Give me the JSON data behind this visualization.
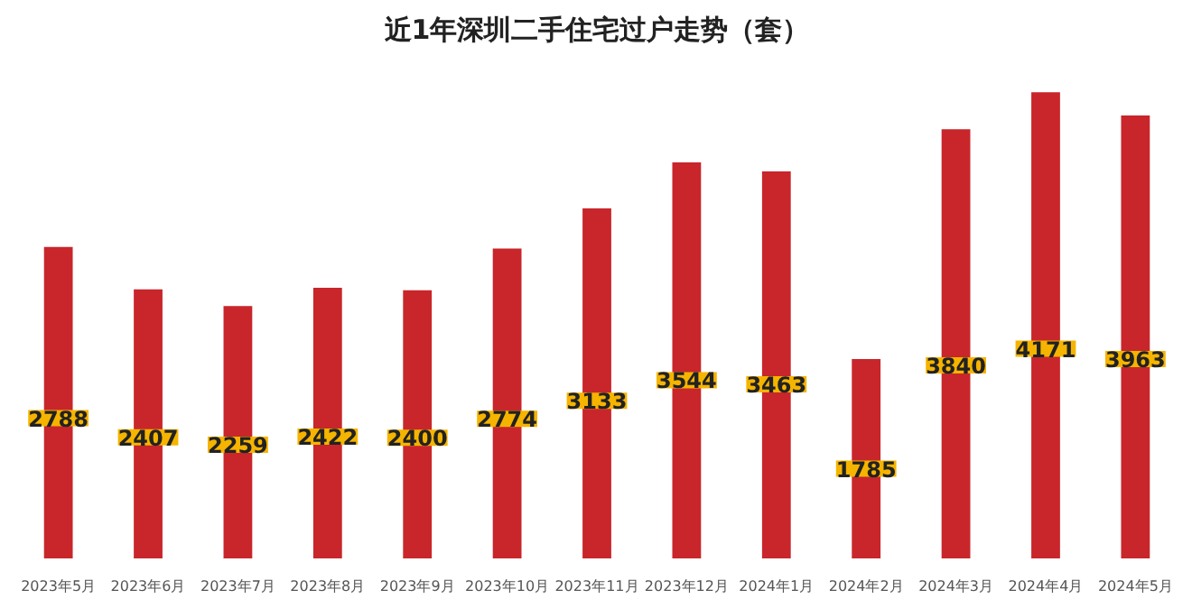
{
  "chart_data": {
    "type": "bar",
    "title": "近1年深圳二手住宅过户走势（套）",
    "categories": [
      "2023年5月",
      "2023年6月",
      "2023年7月",
      "2023年8月",
      "2023年9月",
      "2023年10月",
      "2023年11月",
      "2023年12月",
      "2024年1月",
      "2024年2月",
      "2024年3月",
      "2024年4月",
      "2024年5月"
    ],
    "values": [
      2788,
      2407,
      2259,
      2422,
      2400,
      2774,
      3133,
      3544,
      3463,
      1785,
      3840,
      4171,
      3963
    ],
    "color": "#c8262b",
    "data_labels": true
  }
}
